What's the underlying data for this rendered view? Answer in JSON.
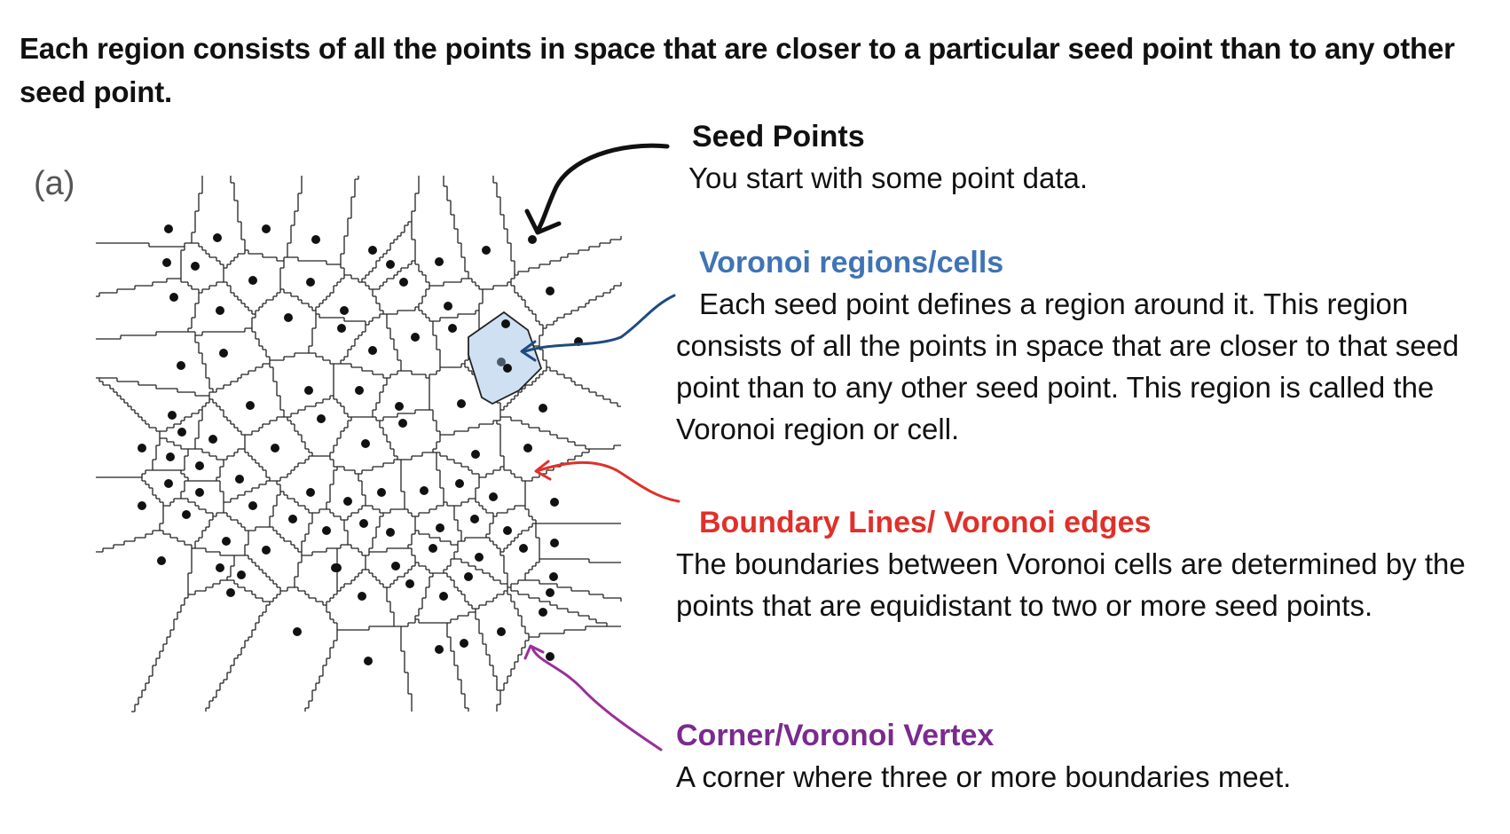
{
  "heading": "Each region consists of all the points in space that are closer to a particular seed point than to any other seed point.",
  "panel_label": "(a)",
  "colors": {
    "seed": "#111111",
    "region": "#3f74b5",
    "boundary": "#e0302a",
    "vertex": "#7a2b8e",
    "highlight_fill": "#cfe0f3"
  },
  "callouts": {
    "seed_points": {
      "title": "Seed Points",
      "body": "You start with some point data."
    },
    "regions": {
      "title": "Voronoi regions/cells",
      "body": "Each seed point defines a region around it. This region consists of all the points in space that are closer to that seed point than to any other seed point. This region is called the Voronoi region or cell."
    },
    "boundary": {
      "title": "Boundary Lines/ Voronoi edges",
      "body": "The boundaries between Voronoi cells are determined by the points that are equidistant to two or more seed points."
    },
    "vertex": {
      "title": "Corner/Voronoi Vertex",
      "body": "A corner where three or more boundaries meet."
    }
  }
}
